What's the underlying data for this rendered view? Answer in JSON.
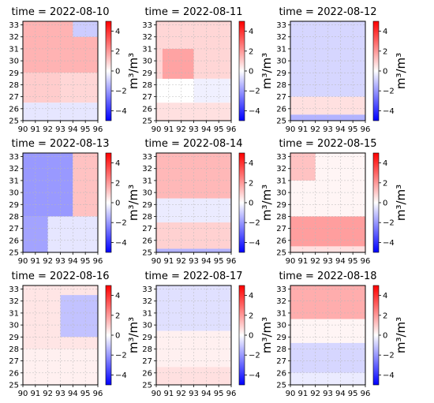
{
  "figure": {
    "colorbar_label": "m³/m³",
    "colormap": [
      "#0000ff",
      "#ffffff",
      "#ff0000"
    ]
  },
  "chart_data": [
    {
      "type": "heatmap",
      "title": "time = 2022-08-10",
      "x_ticks": [
        "90",
        "91",
        "92",
        "93",
        "94",
        "95",
        "96"
      ],
      "y_ticks": [
        "25",
        "26",
        "27",
        "28",
        "29",
        "30",
        "31",
        "32",
        "33"
      ],
      "xlim": [
        90,
        96
      ],
      "ylim": [
        25,
        33.3
      ],
      "colorbar": {
        "ticks": [
          "4",
          "2",
          "0",
          "−2",
          "−4"
        ],
        "range": [
          -5,
          5
        ]
      },
      "regions": [
        {
          "x": [
            90,
            96
          ],
          "y": [
            29,
            33.3
          ],
          "value": 1.5
        },
        {
          "x": [
            90,
            93
          ],
          "y": [
            26.5,
            29
          ],
          "value": 1.0
        },
        {
          "x": [
            93,
            96
          ],
          "y": [
            26.5,
            29
          ],
          "value": 0.8
        },
        {
          "x": [
            90,
            96
          ],
          "y": [
            25,
            26.5
          ],
          "value": -0.5
        },
        {
          "x": [
            94,
            96
          ],
          "y": [
            32,
            33.3
          ],
          "value": -1.0
        }
      ]
    },
    {
      "type": "heatmap",
      "title": "time = 2022-08-11",
      "x_ticks": [
        "90",
        "91",
        "92",
        "93",
        "94",
        "95",
        "96"
      ],
      "y_ticks": [
        "25",
        "26",
        "27",
        "28",
        "29",
        "30",
        "31",
        "32",
        "33"
      ],
      "xlim": [
        90,
        96
      ],
      "ylim": [
        25,
        33.3
      ],
      "colorbar": {
        "ticks": [
          "4",
          "2",
          "0",
          "−2",
          "−4"
        ],
        "range": [
          -5,
          5
        ]
      },
      "regions": [
        {
          "x": [
            90,
            96
          ],
          "y": [
            28.5,
            33.3
          ],
          "value": 0.8
        },
        {
          "x": [
            90.5,
            93
          ],
          "y": [
            28.5,
            31
          ],
          "value": 1.8
        },
        {
          "x": [
            93,
            96
          ],
          "y": [
            26.5,
            28.5
          ],
          "value": -0.3
        },
        {
          "x": [
            90,
            96
          ],
          "y": [
            25,
            26.5
          ],
          "value": 0.6
        }
      ]
    },
    {
      "type": "heatmap",
      "title": "time = 2022-08-12",
      "x_ticks": [
        "90",
        "91",
        "92",
        "93",
        "94",
        "95",
        "96"
      ],
      "y_ticks": [
        "25",
        "26",
        "27",
        "28",
        "29",
        "30",
        "31",
        "32",
        "33"
      ],
      "xlim": [
        90,
        96
      ],
      "ylim": [
        25,
        33.3
      ],
      "colorbar": {
        "ticks": [
          "4",
          "2",
          "0",
          "−2",
          "−4"
        ],
        "range": [
          -5,
          5
        ]
      },
      "regions": [
        {
          "x": [
            90,
            96
          ],
          "y": [
            27,
            33.3
          ],
          "value": -0.8
        },
        {
          "x": [
            90,
            96
          ],
          "y": [
            25.5,
            27
          ],
          "value": 0.6
        },
        {
          "x": [
            90,
            96
          ],
          "y": [
            25,
            25.5
          ],
          "value": -1.5
        }
      ]
    },
    {
      "type": "heatmap",
      "title": "time = 2022-08-13",
      "x_ticks": [
        "90",
        "91",
        "92",
        "93",
        "94",
        "95",
        "96"
      ],
      "y_ticks": [
        "25",
        "26",
        "27",
        "28",
        "29",
        "30",
        "31",
        "32",
        "33"
      ],
      "xlim": [
        90,
        96
      ],
      "ylim": [
        25,
        33.3
      ],
      "colorbar": {
        "ticks": [
          "4",
          "2",
          "0",
          "−2",
          "−4"
        ],
        "range": [
          -5,
          5
        ]
      },
      "regions": [
        {
          "x": [
            90,
            94
          ],
          "y": [
            28,
            33.3
          ],
          "value": -2.0
        },
        {
          "x": [
            94,
            96
          ],
          "y": [
            28,
            33.3
          ],
          "value": 1.2
        },
        {
          "x": [
            90,
            92
          ],
          "y": [
            25,
            28
          ],
          "value": -1.8
        },
        {
          "x": [
            92,
            96
          ],
          "y": [
            25,
            28
          ],
          "value": -0.5
        }
      ]
    },
    {
      "type": "heatmap",
      "title": "time = 2022-08-14",
      "x_ticks": [
        "90",
        "91",
        "92",
        "93",
        "94",
        "95",
        "96"
      ],
      "y_ticks": [
        "25",
        "26",
        "27",
        "28",
        "29",
        "30",
        "31",
        "32",
        "33"
      ],
      "xlim": [
        90,
        96
      ],
      "ylim": [
        25,
        33.3
      ],
      "colorbar": {
        "ticks": [
          "4",
          "2",
          "0",
          "−2",
          "−4"
        ],
        "range": [
          -5,
          5
        ]
      },
      "regions": [
        {
          "x": [
            90,
            96
          ],
          "y": [
            29.5,
            33.3
          ],
          "value": 1.4
        },
        {
          "x": [
            90,
            96
          ],
          "y": [
            27.5,
            29.5
          ],
          "value": -0.4
        },
        {
          "x": [
            90,
            96
          ],
          "y": [
            25.3,
            27.5
          ],
          "value": 0.9
        },
        {
          "x": [
            90,
            96
          ],
          "y": [
            25,
            25.3
          ],
          "value": -1.5
        }
      ]
    },
    {
      "type": "heatmap",
      "title": "time = 2022-08-15",
      "x_ticks": [
        "90",
        "91",
        "92",
        "93",
        "94",
        "95",
        "96"
      ],
      "y_ticks": [
        "25",
        "26",
        "27",
        "28",
        "29",
        "30",
        "31",
        "32",
        "33"
      ],
      "xlim": [
        90,
        96
      ],
      "ylim": [
        25,
        33.3
      ],
      "colorbar": {
        "ticks": [
          "4",
          "2",
          "0",
          "−2",
          "−4"
        ],
        "range": [
          -5,
          5
        ]
      },
      "regions": [
        {
          "x": [
            90,
            96
          ],
          "y": [
            28,
            33.3
          ],
          "value": 0.2
        },
        {
          "x": [
            90,
            92
          ],
          "y": [
            31,
            33.3
          ],
          "value": 1.2
        },
        {
          "x": [
            90,
            96
          ],
          "y": [
            25.5,
            28
          ],
          "value": 1.9
        },
        {
          "x": [
            90,
            96
          ],
          "y": [
            25,
            25.5
          ],
          "value": 0.6
        }
      ]
    },
    {
      "type": "heatmap",
      "title": "time = 2022-08-16",
      "x_ticks": [
        "90",
        "91",
        "92",
        "93",
        "94",
        "95",
        "96"
      ],
      "y_ticks": [
        "25",
        "26",
        "27",
        "28",
        "29",
        "30",
        "31",
        "32",
        "33"
      ],
      "xlim": [
        90,
        96
      ],
      "ylim": [
        25,
        33.3
      ],
      "colorbar": {
        "ticks": [
          "4",
          "2",
          "0",
          "−2",
          "−4"
        ],
        "range": [
          -5,
          5
        ]
      },
      "regions": [
        {
          "x": [
            90,
            96
          ],
          "y": [
            28,
            33.3
          ],
          "value": 0.5
        },
        {
          "x": [
            93,
            96
          ],
          "y": [
            29,
            32.5
          ],
          "value": -1.2
        },
        {
          "x": [
            90,
            96
          ],
          "y": [
            25,
            28
          ],
          "value": 0.3
        }
      ]
    },
    {
      "type": "heatmap",
      "title": "time = 2022-08-17",
      "x_ticks": [
        "90",
        "91",
        "92",
        "93",
        "94",
        "95",
        "96"
      ],
      "y_ticks": [
        "25",
        "26",
        "27",
        "28",
        "29",
        "30",
        "31",
        "32",
        "33"
      ],
      "xlim": [
        90,
        96
      ],
      "ylim": [
        25,
        33.3
      ],
      "colorbar": {
        "ticks": [
          "4",
          "2",
          "0",
          "−2",
          "−4"
        ],
        "range": [
          -5,
          5
        ]
      },
      "regions": [
        {
          "x": [
            90,
            96
          ],
          "y": [
            29.5,
            33.3
          ],
          "value": -0.6
        },
        {
          "x": [
            90,
            96
          ],
          "y": [
            26.5,
            29.5
          ],
          "value": 0.3
        },
        {
          "x": [
            90,
            96
          ],
          "y": [
            25,
            26.5
          ],
          "value": 0.6
        }
      ]
    },
    {
      "type": "heatmap",
      "title": "time = 2022-08-18",
      "x_ticks": [
        "90",
        "91",
        "92",
        "93",
        "94",
        "95",
        "96"
      ],
      "y_ticks": [
        "25",
        "26",
        "27",
        "28",
        "29",
        "30",
        "31",
        "32",
        "33"
      ],
      "xlim": [
        90,
        96
      ],
      "ylim": [
        25,
        33.3
      ],
      "colorbar": {
        "ticks": [
          "4",
          "2",
          "0",
          "−2",
          "−4"
        ],
        "range": [
          -5,
          5
        ]
      },
      "regions": [
        {
          "x": [
            90,
            96
          ],
          "y": [
            30.5,
            33.3
          ],
          "value": 1.6
        },
        {
          "x": [
            90,
            96
          ],
          "y": [
            28.5,
            30.5
          ],
          "value": 0.2
        },
        {
          "x": [
            90,
            96
          ],
          "y": [
            26,
            28.5
          ],
          "value": -0.8
        },
        {
          "x": [
            90,
            96
          ],
          "y": [
            25,
            26
          ],
          "value": -0.4
        }
      ]
    }
  ]
}
